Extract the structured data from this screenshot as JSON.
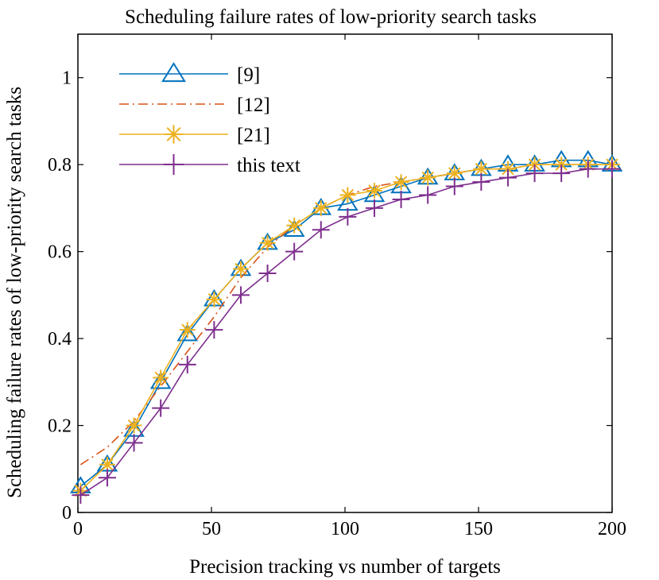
{
  "chart_data": {
    "type": "line",
    "title": "Scheduling failure rates of low-priority search tasks",
    "xlabel": "Precision tracking vs number of targets",
    "ylabel": "Scheduling failure rates of low-priority search tasks",
    "xlim": [
      0,
      200
    ],
    "ylim": [
      0,
      1.1
    ],
    "xticks": [
      0,
      50,
      100,
      150,
      200
    ],
    "xtick_labels": [
      "0",
      "50",
      "100",
      "150",
      "200"
    ],
    "yticks": [
      0,
      0.2,
      0.4,
      0.6,
      0.8,
      1
    ],
    "ytick_labels": [
      "0",
      "0.2",
      "0.4",
      "0.6",
      "0.8",
      "1"
    ],
    "grid": false,
    "legend": {
      "placement": "top-left"
    },
    "x": [
      1,
      11,
      21,
      31,
      41,
      51,
      61,
      71,
      81,
      91,
      101,
      111,
      121,
      131,
      141,
      151,
      161,
      171,
      181,
      191,
      200
    ],
    "series": [
      {
        "name": "[9]",
        "color": "#0072BD",
        "marker": "triangle",
        "dash": "solid",
        "values": [
          0.06,
          0.11,
          0.19,
          0.3,
          0.41,
          0.49,
          0.56,
          0.62,
          0.65,
          0.7,
          0.71,
          0.73,
          0.75,
          0.77,
          0.78,
          0.79,
          0.8,
          0.8,
          0.81,
          0.81,
          0.8
        ]
      },
      {
        "name": "[12]",
        "color": "#D95319",
        "marker": "none",
        "dash": "dashdot",
        "values": [
          0.11,
          0.15,
          0.21,
          0.29,
          0.37,
          0.45,
          0.54,
          0.61,
          0.66,
          0.7,
          0.73,
          0.75,
          0.76,
          0.77,
          0.78,
          0.79,
          0.79,
          0.8,
          0.8,
          0.8,
          0.8
        ]
      },
      {
        "name": "[21]",
        "color": "#EDB120",
        "marker": "asterisk",
        "dash": "solid",
        "values": [
          0.05,
          0.11,
          0.2,
          0.31,
          0.42,
          0.49,
          0.56,
          0.62,
          0.66,
          0.7,
          0.73,
          0.74,
          0.76,
          0.77,
          0.78,
          0.79,
          0.79,
          0.8,
          0.8,
          0.8,
          0.8
        ]
      },
      {
        "name": "this text",
        "color": "#7E2F8E",
        "marker": "plus",
        "dash": "solid",
        "values": [
          0.04,
          0.08,
          0.16,
          0.24,
          0.34,
          0.42,
          0.5,
          0.55,
          0.6,
          0.65,
          0.68,
          0.7,
          0.72,
          0.73,
          0.75,
          0.76,
          0.77,
          0.78,
          0.78,
          0.79,
          0.79
        ]
      }
    ]
  }
}
